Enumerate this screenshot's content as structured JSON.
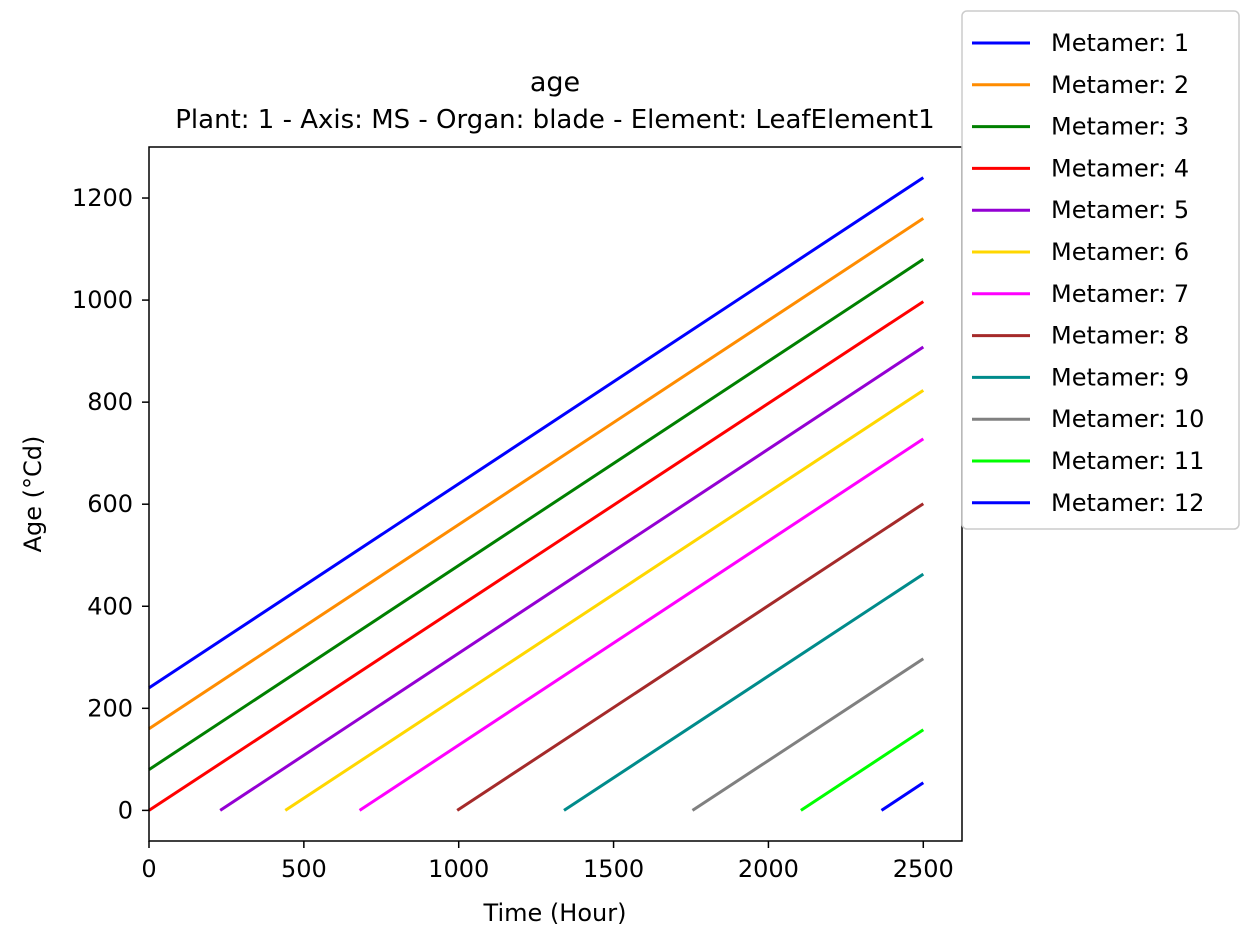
{
  "chart_data": {
    "type": "line",
    "title": "age",
    "subtitle": "Plant: 1 - Axis: MS - Organ: blade - Element: LeafElement1",
    "xlabel": "Time (Hour)",
    "ylabel": "Age (°Cd)",
    "xlim": [
      0,
      2625
    ],
    "ylim": [
      -60,
      1300
    ],
    "xticks": [
      0,
      500,
      1000,
      1500,
      2000,
      2500
    ],
    "yticks": [
      0,
      200,
      400,
      600,
      800,
      1000,
      1200
    ],
    "xtick_labels": [
      "0",
      "500",
      "1000",
      "1500",
      "2000",
      "2500"
    ],
    "ytick_labels": [
      "0",
      "200",
      "400",
      "600",
      "800",
      "1000",
      "1200"
    ],
    "grid": false,
    "legend_placement": "upper-right-outside",
    "series": [
      {
        "name": "Metamer: 1",
        "color": "#0000ff",
        "x": [
          0,
          2500
        ],
        "y": [
          240,
          1240
        ]
      },
      {
        "name": "Metamer: 2",
        "color": "#ff8c00",
        "x": [
          0,
          2500
        ],
        "y": [
          160,
          1160
        ]
      },
      {
        "name": "Metamer: 3",
        "color": "#008000",
        "x": [
          0,
          2500
        ],
        "y": [
          80,
          1080
        ]
      },
      {
        "name": "Metamer: 4",
        "color": "#ff0000",
        "x": [
          0,
          2500
        ],
        "y": [
          0,
          997
        ]
      },
      {
        "name": "Metamer: 5",
        "color": "#9400d3",
        "x": [
          230,
          2500
        ],
        "y": [
          0,
          908
        ]
      },
      {
        "name": "Metamer: 6",
        "color": "#ffd700",
        "x": [
          440,
          2500
        ],
        "y": [
          0,
          823
        ]
      },
      {
        "name": "Metamer: 7",
        "color": "#ff00ff",
        "x": [
          680,
          2500
        ],
        "y": [
          0,
          728
        ]
      },
      {
        "name": "Metamer: 8",
        "color": "#a52a2a",
        "x": [
          995,
          2500
        ],
        "y": [
          0,
          601
        ]
      },
      {
        "name": "Metamer: 9",
        "color": "#008b8b",
        "x": [
          1340,
          2500
        ],
        "y": [
          0,
          463
        ]
      },
      {
        "name": "Metamer: 10",
        "color": "#808080",
        "x": [
          1755,
          2500
        ],
        "y": [
          0,
          297
        ]
      },
      {
        "name": "Metamer: 11",
        "color": "#00ff00",
        "x": [
          2105,
          2500
        ],
        "y": [
          0,
          158
        ]
      },
      {
        "name": "Metamer: 12",
        "color": "#0000ff",
        "x": [
          2365,
          2500
        ],
        "y": [
          0,
          54
        ]
      }
    ]
  }
}
